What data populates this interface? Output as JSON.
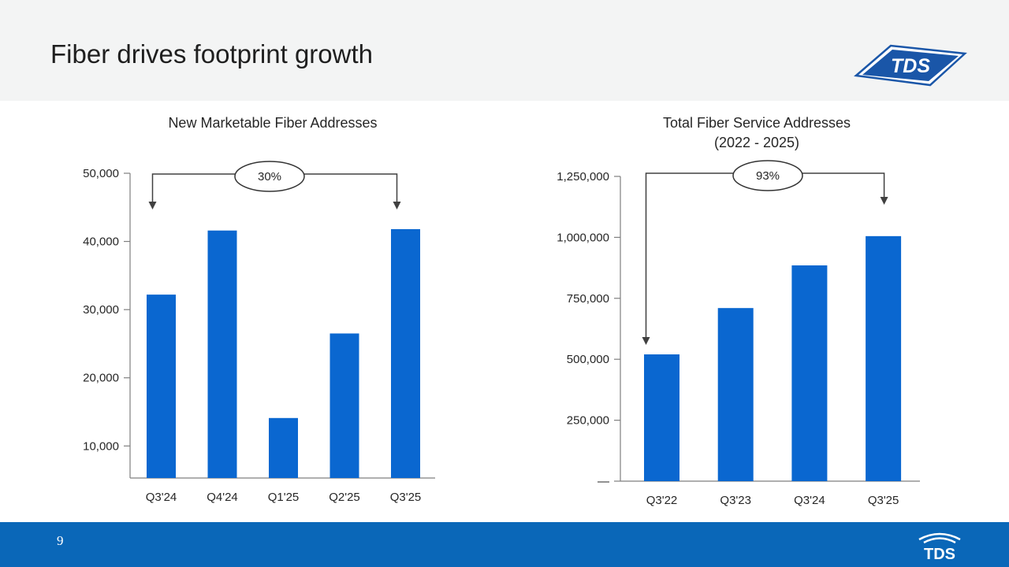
{
  "slide": {
    "title": "Fiber drives footprint growth",
    "page_number": "9",
    "logo_text": "TDS",
    "colors": {
      "bar": "#0a67d0",
      "footer": "#0a67b8",
      "header_bg": "#f3f4f4",
      "logo_blue": "#1a56a8"
    }
  },
  "chart_data": [
    {
      "type": "bar",
      "title": "New Marketable Fiber Addresses",
      "subtitle": "",
      "categories": [
        "Q3'24",
        "Q4'24",
        "Q1'25",
        "Q2'25",
        "Q3'25"
      ],
      "values": [
        32200,
        41600,
        14100,
        26500,
        41800
      ],
      "ylim": [
        5300,
        50000
      ],
      "yticks": [
        10000,
        20000,
        30000,
        40000,
        50000
      ],
      "ytick_labels": [
        "10,000",
        "20,000",
        "30,000",
        "40,000",
        "50,000"
      ],
      "xlabel": "",
      "ylabel": "",
      "grid": false,
      "annotation": {
        "label": "30%",
        "from": "Q3'24",
        "to": "Q3'25"
      }
    },
    {
      "type": "bar",
      "title": "Total Fiber Service Addresses",
      "subtitle": "(2022 - 2025)",
      "categories": [
        "Q3'22",
        "Q3'23",
        "Q3'24",
        "Q3'25"
      ],
      "values": [
        520000,
        710000,
        885000,
        1005000
      ],
      "ylim": [
        0,
        1250000
      ],
      "yticks": [
        0,
        250000,
        500000,
        750000,
        1000000,
        1250000
      ],
      "ytick_labels": [
        "—",
        "250,000",
        "500,000",
        "750,000",
        "1,000,000",
        "1,250,000"
      ],
      "xlabel": "",
      "ylabel": "",
      "grid": false,
      "annotation": {
        "label": "93%",
        "from": "Q3'22",
        "to": "Q3'25"
      }
    }
  ]
}
